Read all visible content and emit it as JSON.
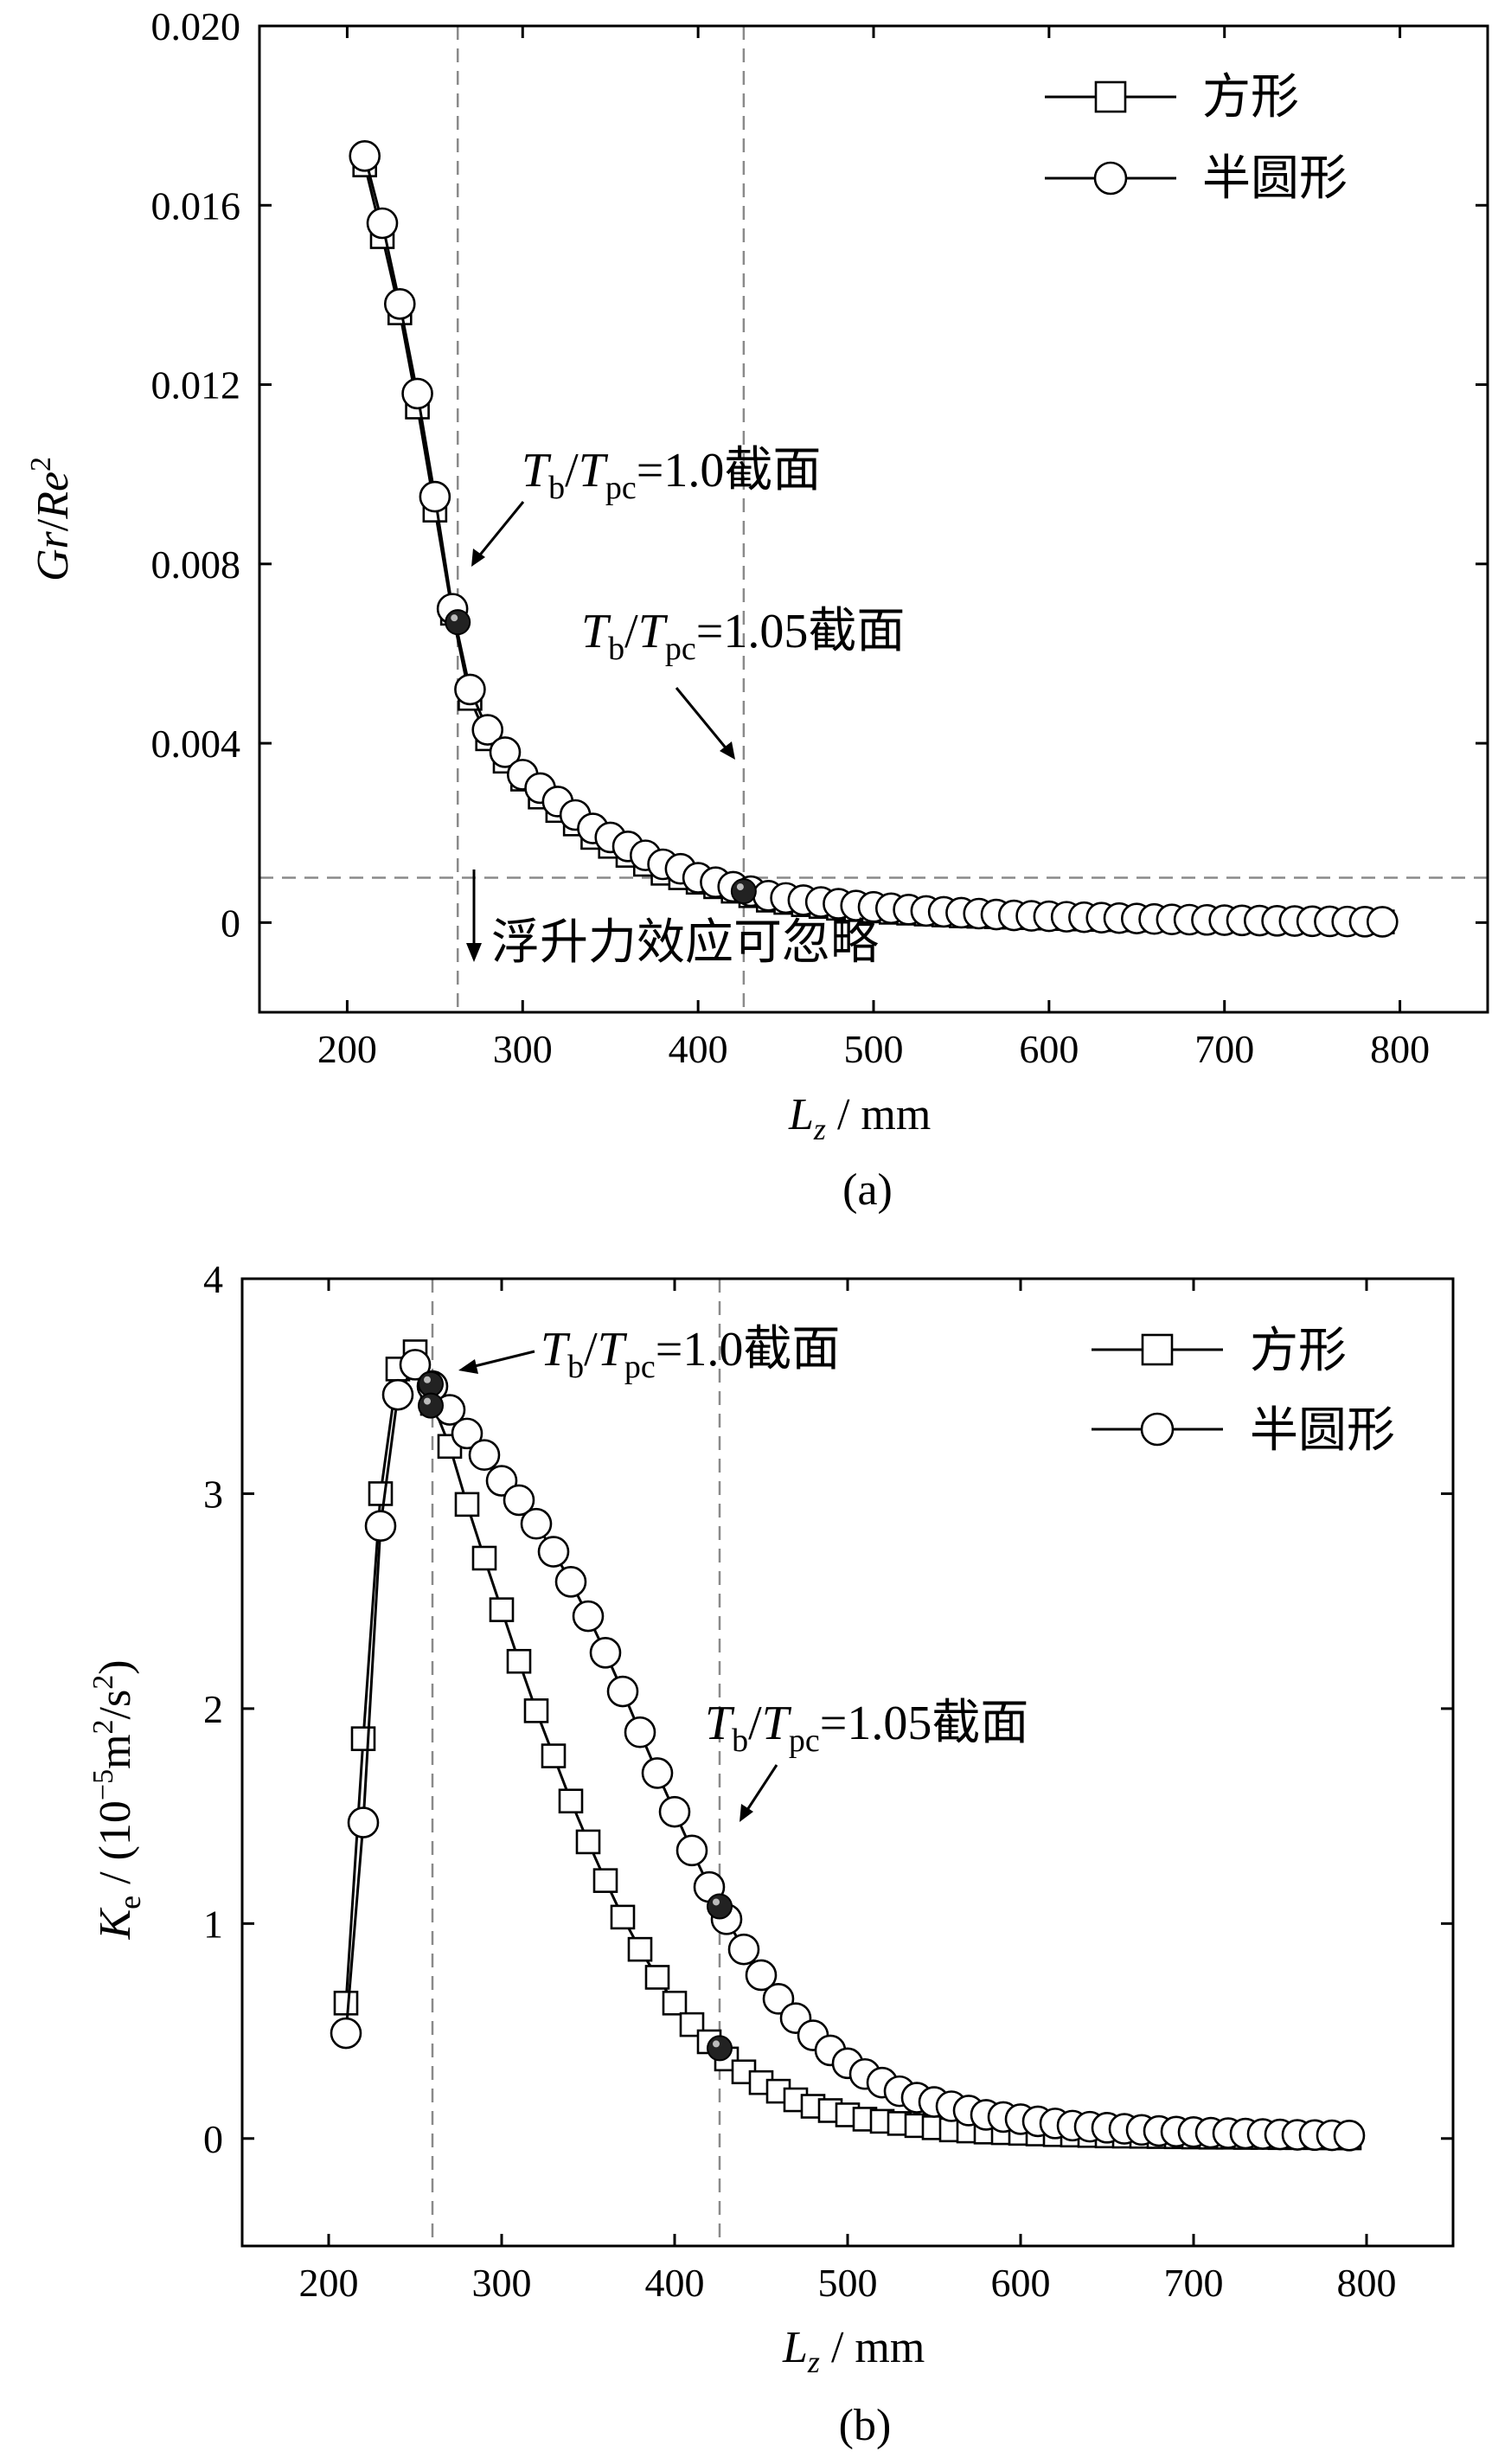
{
  "chart_data": [
    {
      "type": "line",
      "panel_label": "(a)",
      "xlabel_var": "L",
      "xlabel_sub": "z",
      "xlabel_unit": " / mm",
      "ylabel_parts": [
        "Gr",
        "/",
        "Re",
        "2"
      ],
      "xlim": [
        150,
        850
      ],
      "ylim": [
        -0.002,
        0.02
      ],
      "xticks": [
        200,
        300,
        400,
        500,
        600,
        700,
        800
      ],
      "xtick_labels": [
        "200",
        "300",
        "400",
        "500",
        "600",
        "700",
        "800"
      ],
      "yticks": [
        0,
        0.004,
        0.008,
        0.012,
        0.016,
        0.02
      ],
      "ytick_labels": [
        "0",
        "0.004",
        "0.008",
        "0.012",
        "0.016",
        "0.020"
      ],
      "legend": {
        "position": "top-right",
        "entries": [
          "方形",
          "半圆形"
        ]
      },
      "series": [
        {
          "name": "方形",
          "marker": "square",
          "x": [
            210,
            220,
            230,
            240,
            250,
            260,
            270,
            280,
            290,
            300,
            310,
            320,
            330,
            340,
            350,
            360,
            370,
            380,
            390,
            400,
            410,
            420,
            430,
            440,
            450,
            460,
            470,
            480,
            490,
            500,
            510,
            520,
            530,
            540,
            550,
            560,
            570,
            580,
            590,
            600,
            610,
            620,
            630,
            640,
            650,
            660,
            670,
            680,
            690,
            700,
            710,
            720,
            730,
            740,
            750,
            760,
            770,
            780,
            790
          ],
          "y": [
            0.0169,
            0.0153,
            0.0136,
            0.0115,
            0.0092,
            0.0069,
            0.005,
            0.0041,
            0.0036,
            0.0032,
            0.0028,
            0.0025,
            0.0022,
            0.0019,
            0.0017,
            0.0015,
            0.0013,
            0.0011,
            0.001,
            0.0009,
            0.0008,
            0.0007,
            0.0006,
            0.0005,
            0.00045,
            0.0004,
            0.00036,
            0.00032,
            0.00029,
            0.00026,
            0.00023,
            0.00021,
            0.00019,
            0.00017,
            0.00015,
            0.00014,
            0.00013,
            0.00012,
            0.00011,
            0.0001,
            9e-05,
            8e-05,
            7e-05,
            6.5e-05,
            6e-05,
            5.5e-05,
            5e-05,
            4.5e-05,
            4e-05,
            3.7e-05,
            3.4e-05,
            3.1e-05,
            2.8e-05,
            2.5e-05,
            2.2e-05,
            2e-05,
            1.8e-05,
            1.6e-05,
            1.5e-05
          ]
        },
        {
          "name": "半圆形",
          "marker": "circle",
          "x": [
            210,
            220,
            230,
            240,
            250,
            260,
            270,
            280,
            290,
            300,
            310,
            320,
            330,
            340,
            350,
            360,
            370,
            380,
            390,
            400,
            410,
            420,
            430,
            440,
            450,
            460,
            470,
            480,
            490,
            500,
            510,
            520,
            530,
            540,
            550,
            560,
            570,
            580,
            590,
            600,
            610,
            620,
            630,
            640,
            650,
            660,
            670,
            680,
            690,
            700,
            710,
            720,
            730,
            740,
            750,
            760,
            770,
            780,
            790
          ],
          "y": [
            0.0171,
            0.0156,
            0.0138,
            0.0118,
            0.0095,
            0.007,
            0.0052,
            0.0043,
            0.0038,
            0.0033,
            0.003,
            0.0027,
            0.0024,
            0.0021,
            0.0019,
            0.0017,
            0.0015,
            0.0013,
            0.0012,
            0.001,
            0.0009,
            0.0008,
            0.0007,
            0.0006,
            0.00055,
            0.0005,
            0.00046,
            0.00042,
            0.00038,
            0.00035,
            0.00032,
            0.00029,
            0.00026,
            0.00024,
            0.00022,
            0.0002,
            0.00018,
            0.00016,
            0.00015,
            0.00014,
            0.00013,
            0.00012,
            0.00011,
            0.0001,
            9e-05,
            8e-05,
            7e-05,
            6.5e-05,
            6e-05,
            5.5e-05,
            5e-05,
            4.5e-05,
            4e-05,
            3.5e-05,
            3e-05,
            2.7e-05,
            2.4e-05,
            2.1e-05,
            1.8e-05
          ]
        }
      ],
      "highlight_points": [
        {
          "x": 263,
          "y": 0.0067
        },
        {
          "x": 426,
          "y": 0.0007
        }
      ],
      "vlines": [
        263,
        426
      ],
      "hline": 0.001,
      "annotations": [
        {
          "text_parts": [
            "T",
            "b",
            "/",
            "T",
            "pc",
            "=1.0截面"
          ],
          "target": [
            265,
            0.0078
          ]
        },
        {
          "text_parts": [
            "T",
            "b",
            "/",
            "T",
            "pc",
            "=1.05截面"
          ],
          "target": [
            425,
            0.0033
          ]
        },
        {
          "text": "浮升力效应可忽略"
        }
      ]
    },
    {
      "type": "line",
      "panel_label": "(b)",
      "xlabel_var": "L",
      "xlabel_sub": "z",
      "xlabel_unit": " / mm",
      "ylabel_parts": [
        "K",
        "e",
        " / (10",
        "−5",
        "m",
        "2",
        "/s",
        "2",
        ")"
      ],
      "xlim": [
        150,
        850
      ],
      "ylim": [
        -0.5,
        4
      ],
      "xticks": [
        200,
        300,
        400,
        500,
        600,
        700,
        800
      ],
      "xtick_labels": [
        "200",
        "300",
        "400",
        "500",
        "600",
        "700",
        "800"
      ],
      "yticks": [
        0,
        1,
        2,
        3,
        4
      ],
      "ytick_labels": [
        "0",
        "1",
        "2",
        "3",
        "4"
      ],
      "legend": {
        "position": "top-right",
        "entries": [
          "方形",
          "半圆形"
        ]
      },
      "series": [
        {
          "name": "方形",
          "marker": "square",
          "x": [
            210,
            220,
            230,
            240,
            250,
            260,
            270,
            280,
            290,
            300,
            310,
            320,
            330,
            340,
            350,
            360,
            370,
            380,
            390,
            400,
            410,
            420,
            430,
            440,
            450,
            460,
            470,
            480,
            490,
            500,
            510,
            520,
            530,
            540,
            550,
            560,
            570,
            580,
            590,
            600,
            610,
            620,
            630,
            640,
            650,
            660,
            670,
            680,
            690,
            700,
            710,
            720,
            730,
            740,
            750,
            760,
            770,
            780,
            790
          ],
          "y": [
            0.63,
            1.86,
            3.0,
            3.58,
            3.66,
            3.42,
            3.22,
            2.95,
            2.7,
            2.46,
            2.22,
            1.99,
            1.78,
            1.57,
            1.38,
            1.2,
            1.03,
            0.88,
            0.75,
            0.63,
            0.53,
            0.45,
            0.37,
            0.31,
            0.26,
            0.22,
            0.18,
            0.15,
            0.13,
            0.11,
            0.09,
            0.08,
            0.07,
            0.06,
            0.05,
            0.04,
            0.035,
            0.03,
            0.027,
            0.024,
            0.021,
            0.018,
            0.016,
            0.014,
            0.012,
            0.011,
            0.01,
            0.009,
            0.008,
            0.007,
            0.006,
            0.006,
            0.005,
            0.005,
            0.004,
            0.004,
            0.004,
            0.003,
            0.003
          ]
        },
        {
          "name": "半圆形",
          "marker": "circle",
          "x": [
            210,
            220,
            230,
            240,
            250,
            260,
            270,
            280,
            290,
            300,
            310,
            320,
            330,
            340,
            350,
            360,
            370,
            380,
            390,
            400,
            410,
            420,
            430,
            440,
            450,
            460,
            470,
            480,
            490,
            500,
            510,
            520,
            530,
            540,
            550,
            560,
            570,
            580,
            590,
            600,
            610,
            620,
            630,
            640,
            650,
            660,
            670,
            680,
            690,
            700,
            710,
            720,
            730,
            740,
            750,
            760,
            770,
            780,
            790
          ],
          "y": [
            0.49,
            1.47,
            2.85,
            3.46,
            3.6,
            3.5,
            3.39,
            3.28,
            3.18,
            3.06,
            2.97,
            2.86,
            2.73,
            2.59,
            2.43,
            2.26,
            2.08,
            1.89,
            1.7,
            1.52,
            1.34,
            1.17,
            1.02,
            0.88,
            0.76,
            0.65,
            0.56,
            0.48,
            0.41,
            0.35,
            0.3,
            0.26,
            0.22,
            0.19,
            0.17,
            0.15,
            0.13,
            0.11,
            0.1,
            0.09,
            0.08,
            0.07,
            0.06,
            0.055,
            0.05,
            0.045,
            0.04,
            0.035,
            0.032,
            0.03,
            0.027,
            0.025,
            0.023,
            0.021,
            0.019,
            0.017,
            0.016,
            0.015,
            0.014
          ]
        }
      ],
      "highlight_points": [
        {
          "x": 259,
          "y": 3.51
        },
        {
          "x": 259,
          "y": 3.41
        },
        {
          "x": 426,
          "y": 1.08
        },
        {
          "x": 426,
          "y": 0.42
        }
      ],
      "vlines": [
        260,
        426
      ],
      "annotations": [
        {
          "text_parts": [
            "T",
            "b",
            "/",
            "T",
            "pc",
            "=1.0截面"
          ],
          "target": [
            270,
            3.55
          ]
        },
        {
          "text_parts": [
            "T",
            "b",
            "/",
            "T",
            "pc",
            "=1.05截面"
          ],
          "target": [
            427,
            1.3
          ]
        }
      ]
    }
  ]
}
